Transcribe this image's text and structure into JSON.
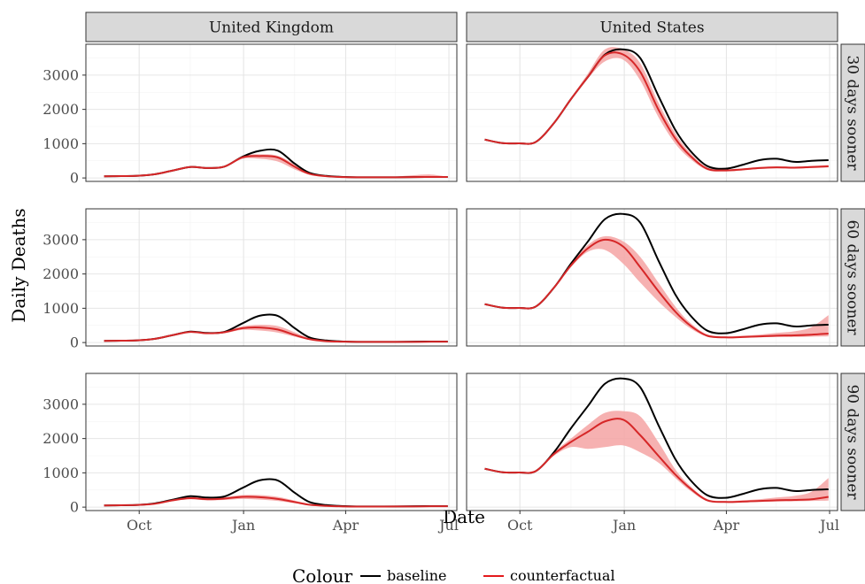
{
  "chart_data": {
    "type": "line",
    "xlabel": "Date",
    "ylabel": "Daily Deaths",
    "x_ticks": [
      "Oct",
      "Jan",
      "Apr",
      "Jul"
    ],
    "x_tick_dates": [
      "2020-10-01",
      "2021-01-01",
      "2021-04-01",
      "2021-07-01"
    ],
    "xlim": [
      "2020-08-15",
      "2021-07-08"
    ],
    "ylim": [
      -100,
      3900
    ],
    "y_ticks": [
      0,
      1000,
      2000,
      3000
    ],
    "grid": true,
    "facet_columns": [
      "United Kingdom",
      "United States"
    ],
    "facet_rows": [
      "30 days sooner",
      "60 days sooner",
      "90 days sooner"
    ],
    "legend": {
      "title": "Colour",
      "position": "bottom",
      "entries": [
        {
          "label": "baseline",
          "color": "#000000"
        },
        {
          "label": "counterfactual",
          "color": "#e41a1c"
        }
      ]
    },
    "colors": {
      "baseline": "#000000",
      "counterfactual": "#d62728",
      "ribbon": "#f4a3a3"
    },
    "dates": [
      "2020-08-31",
      "2020-09-15",
      "2020-09-30",
      "2020-10-15",
      "2020-10-31",
      "2020-11-15",
      "2020-11-30",
      "2020-12-15",
      "2020-12-31",
      "2021-01-15",
      "2021-01-31",
      "2021-02-15",
      "2021-02-28",
      "2021-03-15",
      "2021-03-31",
      "2021-04-15",
      "2021-04-30",
      "2021-05-15",
      "2021-05-31",
      "2021-06-15",
      "2021-06-30"
    ],
    "panels": [
      {
        "country": "United Kingdom",
        "scenario": "30 days sooner",
        "baseline": [
          50,
          55,
          65,
          110,
          220,
          320,
          290,
          330,
          620,
          790,
          800,
          420,
          150,
          60,
          30,
          20,
          20,
          20,
          25,
          30,
          30
        ],
        "counterfactual": [
          50,
          55,
          65,
          110,
          220,
          320,
          290,
          330,
          600,
          640,
          600,
          330,
          120,
          50,
          25,
          20,
          20,
          20,
          25,
          30,
          30
        ],
        "lower": [
          45,
          50,
          60,
          100,
          210,
          305,
          275,
          310,
          560,
          560,
          480,
          250,
          100,
          40,
          20,
          15,
          15,
          15,
          15,
          20,
          25
        ],
        "upper": [
          55,
          60,
          70,
          120,
          230,
          335,
          305,
          345,
          640,
          690,
          650,
          400,
          150,
          60,
          30,
          25,
          25,
          40,
          80,
          100,
          35
        ]
      },
      {
        "country": "United States",
        "scenario": "30 days sooner",
        "baseline": [
          1120,
          1020,
          1010,
          1050,
          1600,
          2300,
          2950,
          3600,
          3750,
          3500,
          2400,
          1400,
          800,
          350,
          270,
          380,
          520,
          560,
          470,
          500,
          520
        ],
        "counterfactual": [
          1120,
          1020,
          1010,
          1050,
          1600,
          2300,
          2950,
          3580,
          3600,
          3100,
          2000,
          1150,
          650,
          270,
          220,
          250,
          290,
          310,
          300,
          320,
          340
        ],
        "lower": [
          1110,
          1015,
          1005,
          1045,
          1580,
          2270,
          2900,
          3400,
          3450,
          2850,
          1780,
          1000,
          560,
          230,
          190,
          220,
          260,
          280,
          270,
          290,
          310
        ],
        "upper": [
          1130,
          1025,
          1015,
          1055,
          1620,
          2330,
          3050,
          3750,
          3750,
          3350,
          2200,
          1300,
          740,
          310,
          250,
          280,
          320,
          340,
          330,
          350,
          380
        ]
      },
      {
        "country": "United Kingdom",
        "scenario": "60 days sooner",
        "baseline": [
          50,
          55,
          65,
          110,
          220,
          320,
          280,
          310,
          560,
          780,
          780,
          420,
          150,
          60,
          30,
          20,
          20,
          20,
          25,
          30,
          30
        ],
        "counterfactual": [
          50,
          55,
          65,
          110,
          220,
          310,
          270,
          300,
          420,
          440,
          380,
          220,
          100,
          40,
          25,
          20,
          20,
          20,
          20,
          25,
          25
        ],
        "lower": [
          45,
          50,
          60,
          100,
          205,
          290,
          250,
          270,
          370,
          350,
          290,
          170,
          80,
          30,
          20,
          15,
          15,
          15,
          15,
          20,
          20
        ],
        "upper": [
          55,
          60,
          70,
          120,
          235,
          330,
          290,
          330,
          470,
          520,
          480,
          300,
          130,
          55,
          30,
          25,
          25,
          25,
          25,
          30,
          35
        ]
      },
      {
        "country": "United States",
        "scenario": "60 days sooner",
        "baseline": [
          1120,
          1020,
          1010,
          1050,
          1600,
          2300,
          2950,
          3600,
          3750,
          3500,
          2400,
          1400,
          800,
          350,
          270,
          380,
          520,
          560,
          470,
          500,
          520
        ],
        "counterfactual": [
          1120,
          1020,
          1010,
          1050,
          1600,
          2250,
          2750,
          3000,
          2800,
          2200,
          1500,
          900,
          500,
          200,
          150,
          160,
          180,
          200,
          210,
          230,
          260
        ],
        "lower": [
          1110,
          1015,
          1005,
          1045,
          1580,
          2200,
          2650,
          2700,
          2300,
          1750,
          1200,
          750,
          420,
          170,
          130,
          140,
          150,
          160,
          160,
          170,
          180
        ],
        "upper": [
          1130,
          1025,
          1015,
          1055,
          1620,
          2300,
          2850,
          3100,
          2950,
          2500,
          1750,
          1050,
          580,
          240,
          180,
          200,
          230,
          280,
          330,
          450,
          800
        ]
      },
      {
        "country": "United Kingdom",
        "scenario": "90 days sooner",
        "baseline": [
          50,
          55,
          65,
          110,
          220,
          320,
          280,
          310,
          560,
          780,
          780,
          420,
          150,
          60,
          30,
          20,
          20,
          20,
          25,
          30,
          30
        ],
        "counterfactual": [
          50,
          55,
          65,
          100,
          200,
          260,
          230,
          250,
          300,
          290,
          240,
          150,
          70,
          35,
          20,
          15,
          15,
          20,
          20,
          25,
          25
        ],
        "lower": [
          45,
          50,
          60,
          90,
          180,
          230,
          200,
          210,
          240,
          220,
          180,
          110,
          50,
          25,
          15,
          10,
          10,
          15,
          15,
          20,
          20
        ],
        "upper": [
          55,
          60,
          70,
          110,
          220,
          290,
          260,
          290,
          350,
          350,
          300,
          190,
          90,
          45,
          25,
          20,
          20,
          25,
          25,
          30,
          35
        ]
      },
      {
        "country": "United States",
        "scenario": "90 days sooner",
        "baseline": [
          1120,
          1020,
          1010,
          1050,
          1600,
          2300,
          2950,
          3600,
          3750,
          3500,
          2400,
          1400,
          800,
          350,
          270,
          380,
          520,
          560,
          470,
          500,
          520
        ],
        "counterfactual": [
          1120,
          1020,
          1010,
          1050,
          1550,
          1900,
          2200,
          2500,
          2550,
          2100,
          1500,
          950,
          550,
          200,
          150,
          160,
          180,
          200,
          210,
          230,
          300
        ],
        "lower": [
          1110,
          1015,
          1005,
          1045,
          1500,
          1750,
          1700,
          1750,
          1800,
          1600,
          1300,
          850,
          480,
          170,
          130,
          140,
          150,
          160,
          170,
          180,
          190
        ],
        "upper": [
          1130,
          1025,
          1015,
          1055,
          1600,
          2000,
          2400,
          2750,
          2800,
          2650,
          1900,
          1100,
          620,
          240,
          180,
          200,
          230,
          280,
          330,
          450,
          850
        ]
      }
    ]
  }
}
